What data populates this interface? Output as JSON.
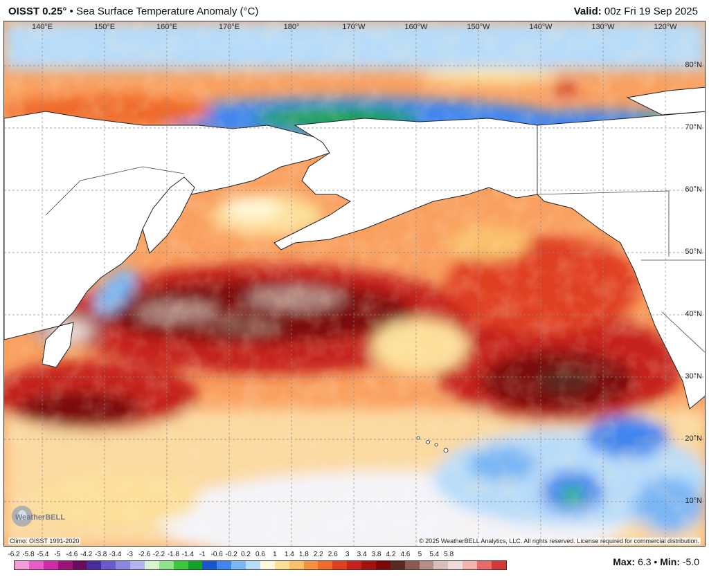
{
  "header": {
    "product": "OISST 0.25°",
    "bullet": "•",
    "title": "Sea Surface Temperature Anomaly (°C)",
    "valid_label": "Valid:",
    "valid_time": "00z Fri 19 Sep 2025"
  },
  "map": {
    "lon_labels": [
      "140°E",
      "150°E",
      "160°E",
      "170°E",
      "180°",
      "170°W",
      "160°W",
      "150°W",
      "140°W",
      "130°W",
      "120°W"
    ],
    "lat_labels": [
      "80°N",
      "70°N",
      "60°N",
      "50°N",
      "40°N",
      "30°N",
      "20°N",
      "10°N"
    ],
    "climo": "Climo: OISST 1991-2020",
    "copyright": "© 2025 WeatherBELL Analytics, LLC. All rights reserved. License required for commercial distribution.",
    "logo_text": "WeatherBELL",
    "logo_icon": "bell-logo-icon"
  },
  "legend": {
    "ticks": [
      "-6.2",
      "-5.8",
      "-5.4",
      "-5",
      "-4.6",
      "-4.2",
      "-3.8",
      "-3.4",
      "-3",
      "-2.6",
      "-2.2",
      "-1.8",
      "-1.4",
      "-1",
      "-0.6",
      "-0.2",
      "0.2",
      "0.6",
      "1",
      "1.4",
      "1.8",
      "2.2",
      "2.6",
      "3",
      "3.4",
      "3.8",
      "4.2",
      "4.6",
      "5",
      "5.4",
      "5.8"
    ],
    "colors": [
      "#f49ad8",
      "#e95bc8",
      "#cf2aa9",
      "#9e1379",
      "#6c0a5b",
      "#4b2a9b",
      "#6a5acd",
      "#8b86e0",
      "#b3b3f0",
      "#d7f5d2",
      "#8fe38a",
      "#3cc83c",
      "#12a02a",
      "#1a55d0",
      "#3f86f0",
      "#7cb6f5",
      "#b7dcfa",
      "#fff8dc",
      "#fddf9a",
      "#fbbf6a",
      "#f7933f",
      "#ef6a2b",
      "#e04020",
      "#c5221a",
      "#a3120f",
      "#7c0808",
      "#5a2a22",
      "#8a5a50",
      "#b58d86",
      "#d9bdb8",
      "#efdcda",
      "#f5b3ad",
      "#e86a6a",
      "#d23a3a"
    ],
    "max_label": "Max:",
    "max_value": "6.3",
    "sep": "•",
    "min_label": "Min:",
    "min_value": "-5.0"
  }
}
